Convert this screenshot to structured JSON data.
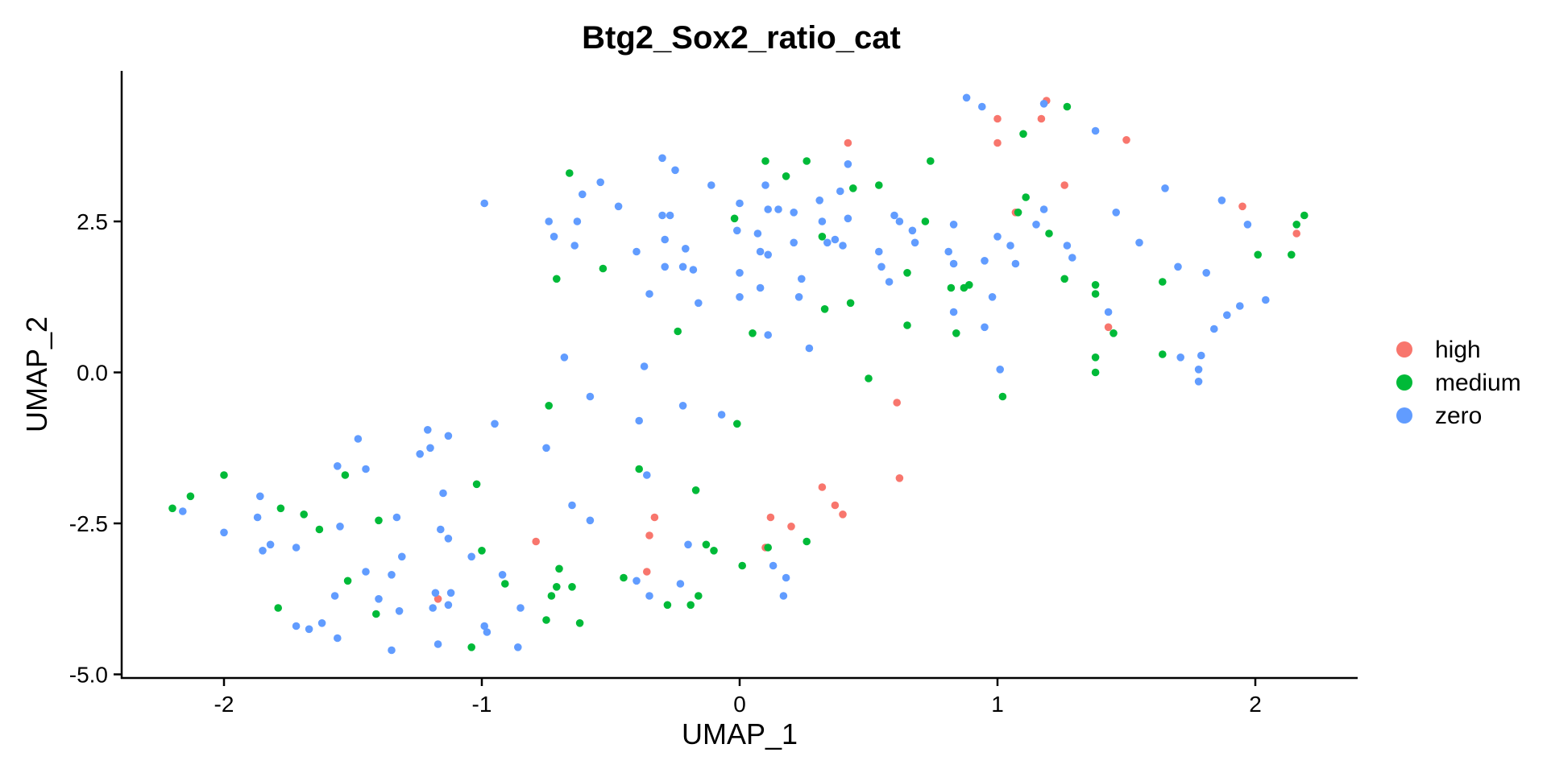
{
  "chart_data": {
    "type": "scatter",
    "title": "Btg2_Sox2_ratio_cat",
    "xlabel": "UMAP_1",
    "ylabel": "UMAP_2",
    "xlim": [
      -2.4,
      2.4
    ],
    "ylim": [
      -5.1,
      5.0
    ],
    "xticks": [
      -2,
      -1,
      0,
      1,
      2
    ],
    "xtick_labels": [
      "-2",
      "-1",
      "0",
      "1",
      "2"
    ],
    "yticks": [
      -5.0,
      -2.5,
      0.0,
      2.5
    ],
    "ytick_labels": [
      "-5.0",
      "-2.5",
      "0.0",
      "2.5"
    ],
    "grid": false,
    "legend_position": "right",
    "series": [
      {
        "name": "high",
        "color": "#F8766D",
        "points": [
          [
            1.0,
            4.2
          ],
          [
            1.0,
            3.8
          ],
          [
            1.17,
            4.2
          ],
          [
            1.19,
            4.5
          ],
          [
            1.26,
            3.1
          ],
          [
            1.5,
            3.85
          ],
          [
            0.42,
            3.8
          ],
          [
            1.07,
            2.65
          ],
          [
            1.95,
            2.75
          ],
          [
            2.16,
            2.3
          ],
          [
            1.43,
            0.75
          ],
          [
            0.61,
            -0.5
          ],
          [
            0.62,
            -1.75
          ],
          [
            0.32,
            -1.9
          ],
          [
            0.37,
            -2.2
          ],
          [
            0.4,
            -2.35
          ],
          [
            0.12,
            -2.4
          ],
          [
            0.2,
            -2.55
          ],
          [
            0.1,
            -2.9
          ],
          [
            -0.33,
            -2.4
          ],
          [
            -0.35,
            -2.7
          ],
          [
            -0.36,
            -3.3
          ],
          [
            -0.79,
            -2.8
          ],
          [
            -1.17,
            -3.75
          ]
        ]
      },
      {
        "name": "medium",
        "color": "#00BA38",
        "points": [
          [
            1.27,
            4.4
          ],
          [
            1.1,
            3.95
          ],
          [
            0.1,
            3.5
          ],
          [
            0.26,
            3.5
          ],
          [
            0.18,
            3.25
          ],
          [
            0.74,
            3.5
          ],
          [
            -0.66,
            3.3
          ],
          [
            0.54,
            3.1
          ],
          [
            0.44,
            3.05
          ],
          [
            1.11,
            2.9
          ],
          [
            1.08,
            2.65
          ],
          [
            -0.02,
            2.55
          ],
          [
            0.72,
            2.5
          ],
          [
            2.19,
            2.6
          ],
          [
            2.16,
            2.45
          ],
          [
            1.2,
            2.3
          ],
          [
            0.32,
            2.25
          ],
          [
            2.01,
            1.95
          ],
          [
            2.14,
            1.95
          ],
          [
            -0.53,
            1.72
          ],
          [
            0.65,
            1.65
          ],
          [
            -0.71,
            1.55
          ],
          [
            1.26,
            1.55
          ],
          [
            1.64,
            1.5
          ],
          [
            1.38,
            1.45
          ],
          [
            0.89,
            1.45
          ],
          [
            0.87,
            1.4
          ],
          [
            0.82,
            1.4
          ],
          [
            1.38,
            1.3
          ],
          [
            0.43,
            1.15
          ],
          [
            0.33,
            1.05
          ],
          [
            0.65,
            0.78
          ],
          [
            -0.24,
            0.68
          ],
          [
            0.05,
            0.65
          ],
          [
            0.84,
            0.65
          ],
          [
            1.45,
            0.65
          ],
          [
            1.64,
            0.3
          ],
          [
            1.38,
            0.25
          ],
          [
            1.38,
            -0.0
          ],
          [
            0.5,
            -0.1
          ],
          [
            1.02,
            -0.4
          ],
          [
            -0.74,
            -0.55
          ],
          [
            -0.01,
            -0.85
          ],
          [
            -0.39,
            -1.6
          ],
          [
            -1.02,
            -1.85
          ],
          [
            -0.17,
            -1.95
          ],
          [
            -2.2,
            -2.25
          ],
          [
            -2.13,
            -2.05
          ],
          [
            -2.0,
            -1.7
          ],
          [
            -1.53,
            -1.7
          ],
          [
            -1.78,
            -2.25
          ],
          [
            -1.69,
            -2.35
          ],
          [
            -1.63,
            -2.6
          ],
          [
            -1.4,
            -2.45
          ],
          [
            -1.52,
            -3.45
          ],
          [
            -1.79,
            -3.9
          ],
          [
            -1.41,
            -4.0
          ],
          [
            -1.0,
            -2.95
          ],
          [
            -0.91,
            -3.5
          ],
          [
            -0.7,
            -3.25
          ],
          [
            -0.73,
            -3.7
          ],
          [
            -0.71,
            -3.55
          ],
          [
            -0.65,
            -3.55
          ],
          [
            -0.75,
            -4.1
          ],
          [
            -0.62,
            -4.15
          ],
          [
            -0.45,
            -3.4
          ],
          [
            -0.28,
            -3.85
          ],
          [
            -0.19,
            -3.85
          ],
          [
            -0.16,
            -3.7
          ],
          [
            -0.13,
            -2.85
          ],
          [
            -0.1,
            -2.95
          ],
          [
            0.01,
            -3.2
          ],
          [
            0.11,
            -2.9
          ],
          [
            0.26,
            -2.8
          ],
          [
            -1.04,
            -4.55
          ]
        ]
      },
      {
        "name": "zero",
        "color": "#619CFF",
        "points": [
          [
            0.88,
            4.55
          ],
          [
            0.94,
            4.4
          ],
          [
            1.18,
            4.45
          ],
          [
            1.38,
            4.0
          ],
          [
            -0.3,
            3.55
          ],
          [
            -0.25,
            3.35
          ],
          [
            -0.54,
            3.15
          ],
          [
            -0.61,
            2.95
          ],
          [
            0.42,
            3.45
          ],
          [
            0.1,
            3.1
          ],
          [
            -0.11,
            3.1
          ],
          [
            0.39,
            3.0
          ],
          [
            0.31,
            2.85
          ],
          [
            -0.0,
            2.8
          ],
          [
            -0.47,
            2.75
          ],
          [
            -0.99,
            2.8
          ],
          [
            0.11,
            2.7
          ],
          [
            0.15,
            2.7
          ],
          [
            0.21,
            2.65
          ],
          [
            0.42,
            2.55
          ],
          [
            0.6,
            2.6
          ],
          [
            0.32,
            2.5
          ],
          [
            -0.3,
            2.6
          ],
          [
            -0.27,
            2.6
          ],
          [
            -0.74,
            2.5
          ],
          [
            -0.72,
            2.25
          ],
          [
            -0.63,
            2.5
          ],
          [
            -0.64,
            2.1
          ],
          [
            -0.4,
            2.0
          ],
          [
            -0.29,
            2.2
          ],
          [
            -0.21,
            2.05
          ],
          [
            -0.22,
            1.75
          ],
          [
            -0.18,
            1.7
          ],
          [
            -0.29,
            1.75
          ],
          [
            -0.01,
            2.35
          ],
          [
            0.07,
            2.3
          ],
          [
            0.08,
            2.0
          ],
          [
            0.11,
            1.95
          ],
          [
            0.34,
            2.15
          ],
          [
            0.37,
            2.2
          ],
          [
            0.4,
            2.1
          ],
          [
            0.21,
            2.15
          ],
          [
            0.62,
            2.5
          ],
          [
            0.67,
            2.35
          ],
          [
            0.68,
            2.15
          ],
          [
            0.54,
            2.0
          ],
          [
            0.55,
            1.75
          ],
          [
            0.58,
            1.5
          ],
          [
            0.83,
            2.45
          ],
          [
            0.81,
            2.0
          ],
          [
            0.83,
            1.8
          ],
          [
            0.95,
            1.85
          ],
          [
            1.0,
            2.25
          ],
          [
            1.05,
            2.1
          ],
          [
            1.07,
            1.8
          ],
          [
            1.15,
            2.45
          ],
          [
            1.18,
            2.7
          ],
          [
            1.27,
            2.1
          ],
          [
            1.29,
            1.9
          ],
          [
            1.43,
            1.0
          ],
          [
            1.46,
            2.65
          ],
          [
            1.55,
            2.15
          ],
          [
            1.65,
            3.05
          ],
          [
            1.7,
            1.75
          ],
          [
            1.81,
            1.65
          ],
          [
            1.87,
            2.85
          ],
          [
            1.97,
            2.45
          ],
          [
            1.94,
            1.1
          ],
          [
            1.89,
            0.95
          ],
          [
            1.84,
            0.72
          ],
          [
            2.04,
            1.2
          ],
          [
            1.71,
            0.25
          ],
          [
            1.78,
            0.05
          ],
          [
            1.79,
            0.28
          ],
          [
            1.78,
            -0.15
          ],
          [
            0.98,
            1.25
          ],
          [
            0.95,
            0.75
          ],
          [
            0.83,
            1.0
          ],
          [
            0.0,
            1.65
          ],
          [
            0.0,
            1.25
          ],
          [
            0.08,
            1.4
          ],
          [
            0.24,
            1.55
          ],
          [
            0.23,
            1.25
          ],
          [
            0.11,
            0.62
          ],
          [
            0.27,
            0.4
          ],
          [
            -0.16,
            1.15
          ],
          [
            -0.35,
            1.3
          ],
          [
            -0.37,
            0.1
          ],
          [
            -0.68,
            0.25
          ],
          [
            1.01,
            0.05
          ],
          [
            -0.58,
            -0.4
          ],
          [
            -0.22,
            -0.55
          ],
          [
            -0.07,
            -0.7
          ],
          [
            -0.39,
            -0.8
          ],
          [
            -0.75,
            -1.25
          ],
          [
            -0.95,
            -0.85
          ],
          [
            -0.36,
            -1.7
          ],
          [
            -1.21,
            -0.95
          ],
          [
            -1.13,
            -1.05
          ],
          [
            -1.2,
            -1.25
          ],
          [
            -1.24,
            -1.35
          ],
          [
            -1.48,
            -1.1
          ],
          [
            -1.56,
            -1.55
          ],
          [
            -1.45,
            -1.6
          ],
          [
            -1.86,
            -2.05
          ],
          [
            -1.87,
            -2.4
          ],
          [
            -2.0,
            -2.65
          ],
          [
            -2.16,
            -2.3
          ],
          [
            -1.85,
            -2.95
          ],
          [
            -1.82,
            -2.85
          ],
          [
            -1.72,
            -2.9
          ],
          [
            -1.55,
            -2.55
          ],
          [
            -1.33,
            -2.4
          ],
          [
            -1.15,
            -2.0
          ],
          [
            -1.16,
            -2.6
          ],
          [
            -1.13,
            -2.75
          ],
          [
            -1.04,
            -3.05
          ],
          [
            -1.31,
            -3.05
          ],
          [
            -1.45,
            -3.3
          ],
          [
            -1.35,
            -3.35
          ],
          [
            -1.57,
            -3.7
          ],
          [
            -1.4,
            -3.75
          ],
          [
            -1.32,
            -3.95
          ],
          [
            -1.18,
            -3.65
          ],
          [
            -1.12,
            -3.65
          ],
          [
            -1.19,
            -3.9
          ],
          [
            -1.13,
            -3.85
          ],
          [
            -0.92,
            -3.35
          ],
          [
            -0.85,
            -3.9
          ],
          [
            -1.72,
            -4.2
          ],
          [
            -1.67,
            -4.25
          ],
          [
            -1.62,
            -4.15
          ],
          [
            -1.56,
            -4.4
          ],
          [
            -1.35,
            -4.6
          ],
          [
            -1.17,
            -4.5
          ],
          [
            -0.99,
            -4.2
          ],
          [
            -0.98,
            -4.3
          ],
          [
            -0.86,
            -4.55
          ],
          [
            -0.65,
            -2.2
          ],
          [
            -0.58,
            -2.45
          ],
          [
            -0.4,
            -3.45
          ],
          [
            -0.35,
            -3.7
          ],
          [
            -0.23,
            -3.5
          ],
          [
            -0.2,
            -2.85
          ],
          [
            0.13,
            -3.2
          ],
          [
            0.18,
            -3.4
          ],
          [
            0.17,
            -3.7
          ]
        ]
      }
    ]
  }
}
